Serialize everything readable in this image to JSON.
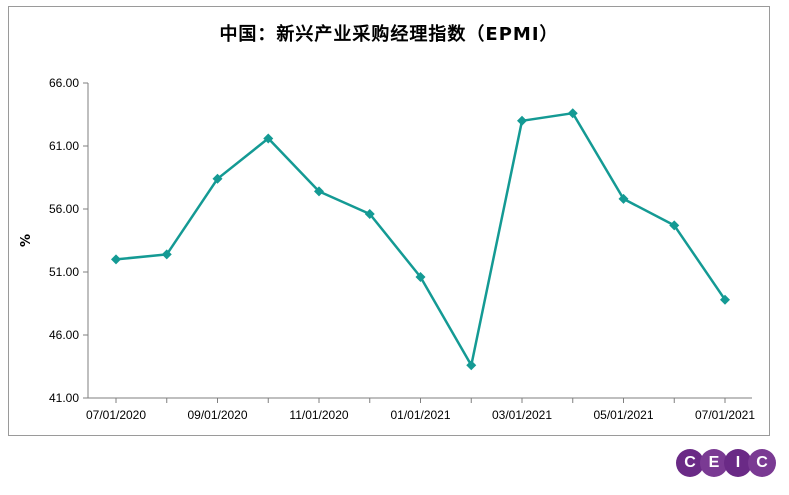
{
  "chart_data": {
    "type": "line",
    "title": "中国：新兴产业采购经理指数（EPMI）",
    "ylabel": "%",
    "ylim": [
      41.0,
      66.0
    ],
    "yticks": [
      "66.00",
      "61.00",
      "56.00",
      "51.00",
      "46.00",
      "41.00"
    ],
    "xticks": [
      "07/01/2020",
      "09/01/2020",
      "11/01/2020",
      "01/01/2021",
      "03/01/2021",
      "05/01/2021",
      "07/01/2021"
    ],
    "x": [
      "2020-07",
      "2020-08",
      "2020-09",
      "2020-10",
      "2020-11",
      "2020-12",
      "2021-01",
      "2021-02",
      "2021-03",
      "2021-04",
      "2021-05",
      "2021-06",
      "2021-07"
    ],
    "series": [
      {
        "values": [
          52.0,
          52.4,
          58.4,
          61.6,
          57.4,
          55.6,
          50.6,
          43.6,
          63.0,
          63.6,
          56.8,
          54.7,
          48.8
        ]
      }
    ],
    "line_color": "#149a94",
    "grid": false
  },
  "logo": {
    "letters": [
      "C",
      "E",
      "I",
      "C"
    ],
    "colors": [
      "#6a2a86",
      "#7a3a93",
      "#6a2a86",
      "#7a3a93"
    ]
  }
}
